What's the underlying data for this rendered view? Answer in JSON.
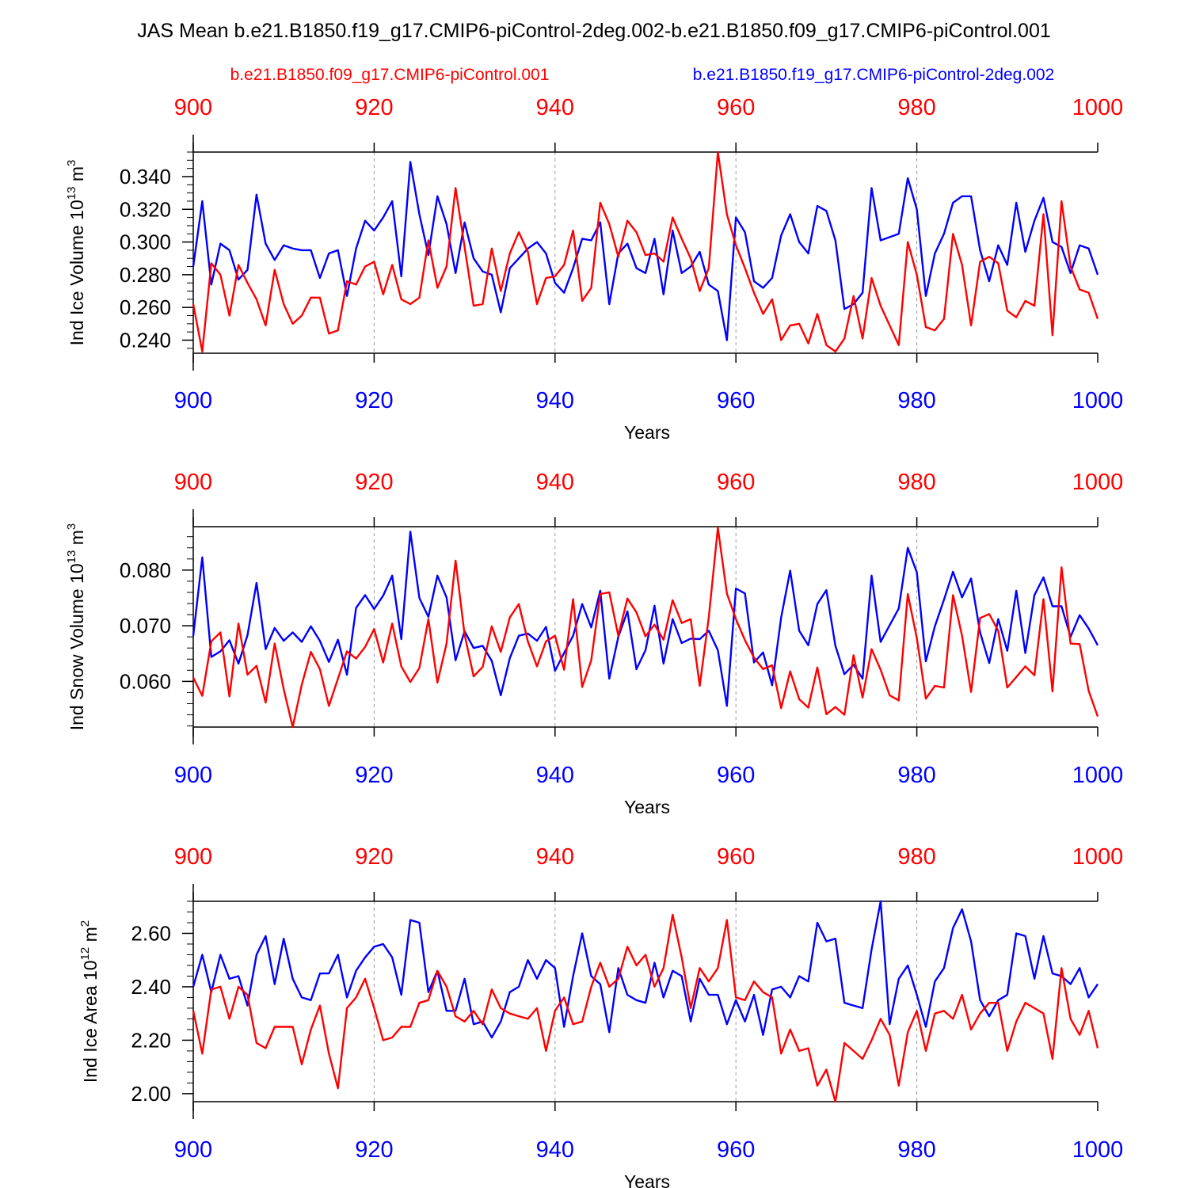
{
  "figure": {
    "title": "JAS Mean b.e21.B1850.f19_g17.CMIP6-piControl-2deg.002-b.e21.B1850.f09_g17.CMIP6-piControl.001",
    "legend_red": "b.e21.B1850.f09_g17.CMIP6-piControl.001",
    "legend_blue": "b.e21.B1850.f19_g17.CMIP6-piControl-2deg.002",
    "xlabel": "Years",
    "colors": {
      "red": "#ff0000",
      "blue": "#0000ff",
      "axis": "#000000",
      "grid": "#999999"
    }
  },
  "chart_data": [
    {
      "type": "line",
      "title": "",
      "ylabel": "Ind Ice Volume 10",
      "ylabel_exp": "13",
      "ylabel_unit": "m",
      "ylabel_unit_exp": "3",
      "xlabel": "Years",
      "xlim": [
        900,
        1000
      ],
      "ylim": [
        0.232,
        0.355
      ],
      "x_ticks": [
        "900",
        "920",
        "940",
        "960",
        "980",
        "1000"
      ],
      "y_ticks": [
        "0.240",
        "0.260",
        "0.280",
        "0.300",
        "0.320",
        "0.340"
      ],
      "y_tick_values": [
        0.24,
        0.26,
        0.28,
        0.3,
        0.32,
        0.34
      ],
      "y_minor_step": 0.005,
      "x_start": 900,
      "series": [
        {
          "name": "b.e21.B1850.f09_g17.CMIP6-piControl.001",
          "color": "red",
          "values": [
            0.262,
            0.233,
            0.287,
            0.28,
            0.255,
            0.286,
            0.275,
            0.265,
            0.249,
            0.283,
            0.262,
            0.25,
            0.255,
            0.266,
            0.266,
            0.244,
            0.246,
            0.276,
            0.274,
            0.285,
            0.288,
            0.268,
            0.286,
            0.265,
            0.262,
            0.266,
            0.301,
            0.272,
            0.285,
            0.333,
            0.297,
            0.261,
            0.262,
            0.296,
            0.27,
            0.293,
            0.306,
            0.294,
            0.262,
            0.278,
            0.279,
            0.286,
            0.307,
            0.264,
            0.272,
            0.324,
            0.311,
            0.291,
            0.313,
            0.306,
            0.292,
            0.293,
            0.288,
            0.315,
            0.302,
            0.29,
            0.27,
            0.284,
            0.355,
            0.317,
            0.298,
            0.284,
            0.269,
            0.256,
            0.265,
            0.24,
            0.249,
            0.25,
            0.238,
            0.256,
            0.237,
            0.233,
            0.241,
            0.267,
            0.241,
            0.278,
            0.261,
            0.249,
            0.237,
            0.3,
            0.28,
            0.248,
            0.246,
            0.253,
            0.305,
            0.286,
            0.249,
            0.288,
            0.291,
            0.287,
            0.258,
            0.254,
            0.264,
            0.261,
            0.317,
            0.243,
            0.325,
            0.285,
            0.271,
            0.269,
            0.253
          ]
        },
        {
          "name": "b.e21.B1850.f19_g17.CMIP6-piControl-2deg.002",
          "color": "blue",
          "values": [
            0.285,
            0.325,
            0.274,
            0.299,
            0.295,
            0.277,
            0.283,
            0.329,
            0.299,
            0.289,
            0.298,
            0.296,
            0.295,
            0.295,
            0.278,
            0.293,
            0.295,
            0.267,
            0.296,
            0.313,
            0.307,
            0.315,
            0.325,
            0.279,
            0.349,
            0.317,
            0.292,
            0.328,
            0.311,
            0.281,
            0.312,
            0.29,
            0.282,
            0.28,
            0.257,
            0.284,
            0.29,
            0.296,
            0.3,
            0.293,
            0.275,
            0.269,
            0.284,
            0.302,
            0.301,
            0.312,
            0.262,
            0.293,
            0.299,
            0.284,
            0.281,
            0.302,
            0.268,
            0.307,
            0.281,
            0.285,
            0.294,
            0.274,
            0.27,
            0.24,
            0.315,
            0.306,
            0.276,
            0.272,
            0.278,
            0.304,
            0.317,
            0.3,
            0.293,
            0.322,
            0.319,
            0.301,
            0.259,
            0.262,
            0.269,
            0.333,
            0.301,
            0.303,
            0.305,
            0.339,
            0.32,
            0.267,
            0.293,
            0.305,
            0.324,
            0.328,
            0.328,
            0.295,
            0.276,
            0.298,
            0.286,
            0.324,
            0.294,
            0.313,
            0.327,
            0.3,
            0.297,
            0.281,
            0.298,
            0.296,
            0.28
          ]
        }
      ]
    },
    {
      "type": "line",
      "title": "",
      "ylabel": "Ind Snow Volume 10",
      "ylabel_exp": "13",
      "ylabel_unit": "m",
      "ylabel_unit_exp": "3",
      "xlabel": "Years",
      "xlim": [
        900,
        1000
      ],
      "ylim": [
        0.0518,
        0.0878
      ],
      "x_ticks": [
        "900",
        "920",
        "940",
        "960",
        "980",
        "1000"
      ],
      "y_ticks": [
        "0.060",
        "0.070",
        "0.080"
      ],
      "y_tick_values": [
        0.06,
        0.07,
        0.08
      ],
      "y_minor_step": 0.002,
      "x_start": 900,
      "series": [
        {
          "name": "b.e21.B1850.f09_g17.CMIP6-piControl.001",
          "color": "red",
          "values": [
            0.0607,
            0.0574,
            0.0672,
            0.0688,
            0.0573,
            0.0704,
            0.0612,
            0.0628,
            0.0562,
            0.0668,
            0.0586,
            0.0518,
            0.0594,
            0.0653,
            0.0622,
            0.0556,
            0.0605,
            0.0654,
            0.0641,
            0.0662,
            0.0694,
            0.0634,
            0.0704,
            0.0627,
            0.0599,
            0.0624,
            0.0712,
            0.0598,
            0.0668,
            0.0817,
            0.0684,
            0.0609,
            0.0626,
            0.0699,
            0.0653,
            0.0715,
            0.0739,
            0.0672,
            0.0627,
            0.0672,
            0.0682,
            0.0621,
            0.0748,
            0.059,
            0.0638,
            0.0757,
            0.076,
            0.0682,
            0.0749,
            0.0724,
            0.0681,
            0.0702,
            0.0675,
            0.0746,
            0.0705,
            0.0712,
            0.0592,
            0.0715,
            0.0876,
            0.0758,
            0.0712,
            0.0674,
            0.0643,
            0.0622,
            0.0629,
            0.0552,
            0.0618,
            0.0568,
            0.0553,
            0.0625,
            0.0541,
            0.0554,
            0.054,
            0.0647,
            0.0571,
            0.0658,
            0.0621,
            0.0575,
            0.0566,
            0.0757,
            0.0678,
            0.0569,
            0.0592,
            0.0589,
            0.0755,
            0.0682,
            0.0581,
            0.0714,
            0.0721,
            0.0691,
            0.0589,
            0.0608,
            0.0627,
            0.0611,
            0.0748,
            0.0582,
            0.0805,
            0.0668,
            0.0667,
            0.0583,
            0.0537
          ]
        },
        {
          "name": "b.e21.B1850.f19_g17.CMIP6-piControl-2deg.002",
          "color": "blue",
          "values": [
            0.0682,
            0.0823,
            0.0644,
            0.0654,
            0.0674,
            0.0632,
            0.0683,
            0.0777,
            0.0658,
            0.0696,
            0.0673,
            0.0688,
            0.0671,
            0.0699,
            0.0673,
            0.0635,
            0.0675,
            0.0612,
            0.0732,
            0.0755,
            0.073,
            0.0754,
            0.079,
            0.0676,
            0.0869,
            0.075,
            0.0716,
            0.079,
            0.0751,
            0.0638,
            0.069,
            0.066,
            0.0664,
            0.0637,
            0.0575,
            0.0642,
            0.0682,
            0.0686,
            0.0673,
            0.0698,
            0.0619,
            0.0651,
            0.0682,
            0.0739,
            0.0697,
            0.0763,
            0.0605,
            0.068,
            0.0726,
            0.0622,
            0.0656,
            0.0736,
            0.0632,
            0.0712,
            0.0669,
            0.0677,
            0.0676,
            0.0691,
            0.0656,
            0.0556,
            0.0767,
            0.0758,
            0.0634,
            0.0652,
            0.0593,
            0.0715,
            0.0799,
            0.0691,
            0.0665,
            0.0739,
            0.0764,
            0.0664,
            0.0613,
            0.063,
            0.0605,
            0.079,
            0.0671,
            0.0701,
            0.0731,
            0.084,
            0.0796,
            0.0636,
            0.0699,
            0.0747,
            0.0797,
            0.0751,
            0.0785,
            0.0688,
            0.0633,
            0.0712,
            0.0655,
            0.0763,
            0.0651,
            0.0755,
            0.0787,
            0.0735,
            0.0735,
            0.068,
            0.0719,
            0.0695,
            0.0665
          ]
        }
      ]
    },
    {
      "type": "line",
      "title": "",
      "ylabel": "Ind Ice Area 10",
      "ylabel_exp": "12",
      "ylabel_unit": "m",
      "ylabel_unit_exp": "2",
      "xlabel": "Years",
      "xlim": [
        900,
        1000
      ],
      "ylim": [
        1.97,
        2.72
      ],
      "x_ticks": [
        "900",
        "920",
        "940",
        "960",
        "980",
        "1000"
      ],
      "y_ticks": [
        "2.00",
        "2.20",
        "2.40",
        "2.60"
      ],
      "y_tick_values": [
        2.0,
        2.2,
        2.4,
        2.6
      ],
      "y_minor_step": 0.04,
      "x_start": 900,
      "series": [
        {
          "name": "b.e21.B1850.f09_g17.CMIP6-piControl.001",
          "color": "red",
          "values": [
            2.31,
            2.15,
            2.39,
            2.4,
            2.28,
            2.4,
            2.37,
            2.19,
            2.17,
            2.25,
            2.25,
            2.25,
            2.11,
            2.24,
            2.33,
            2.15,
            2.02,
            2.32,
            2.36,
            2.43,
            2.32,
            2.2,
            2.21,
            2.25,
            2.25,
            2.34,
            2.35,
            2.46,
            2.4,
            2.29,
            2.27,
            2.31,
            2.26,
            2.39,
            2.32,
            2.3,
            2.29,
            2.28,
            2.32,
            2.16,
            2.31,
            2.36,
            2.26,
            2.27,
            2.4,
            2.49,
            2.4,
            2.43,
            2.55,
            2.48,
            2.52,
            2.4,
            2.47,
            2.67,
            2.51,
            2.32,
            2.47,
            2.42,
            2.47,
            2.65,
            2.36,
            2.35,
            2.42,
            2.38,
            2.36,
            2.15,
            2.24,
            2.16,
            2.17,
            2.03,
            2.09,
            1.97,
            2.19,
            2.16,
            2.13,
            2.2,
            2.28,
            2.22,
            2.03,
            2.23,
            2.31,
            2.16,
            2.3,
            2.31,
            2.28,
            2.37,
            2.24,
            2.3,
            2.34,
            2.34,
            2.16,
            2.27,
            2.34,
            2.32,
            2.3,
            2.13,
            2.47,
            2.28,
            2.22,
            2.31,
            2.17
          ]
        },
        {
          "name": "b.e21.B1850.f19_g17.CMIP6-piControl-2deg.002",
          "color": "blue",
          "values": [
            2.4,
            2.52,
            2.38,
            2.52,
            2.43,
            2.44,
            2.33,
            2.52,
            2.59,
            2.41,
            2.58,
            2.43,
            2.36,
            2.35,
            2.45,
            2.45,
            2.52,
            2.36,
            2.46,
            2.51,
            2.55,
            2.56,
            2.51,
            2.37,
            2.65,
            2.64,
            2.38,
            2.46,
            2.31,
            2.31,
            2.43,
            2.26,
            2.27,
            2.21,
            2.27,
            2.38,
            2.4,
            2.5,
            2.43,
            2.5,
            2.47,
            2.25,
            2.44,
            2.6,
            2.44,
            2.41,
            2.23,
            2.47,
            2.37,
            2.35,
            2.34,
            2.49,
            2.36,
            2.46,
            2.44,
            2.27,
            2.43,
            2.37,
            2.37,
            2.26,
            2.35,
            2.27,
            2.37,
            2.22,
            2.39,
            2.4,
            2.36,
            2.44,
            2.42,
            2.64,
            2.57,
            2.58,
            2.34,
            2.33,
            2.32,
            2.54,
            2.72,
            2.26,
            2.43,
            2.48,
            2.37,
            2.25,
            2.42,
            2.47,
            2.62,
            2.69,
            2.57,
            2.35,
            2.29,
            2.35,
            2.37,
            2.6,
            2.59,
            2.43,
            2.59,
            2.45,
            2.44,
            2.41,
            2.47,
            2.36,
            2.41
          ]
        }
      ]
    }
  ]
}
